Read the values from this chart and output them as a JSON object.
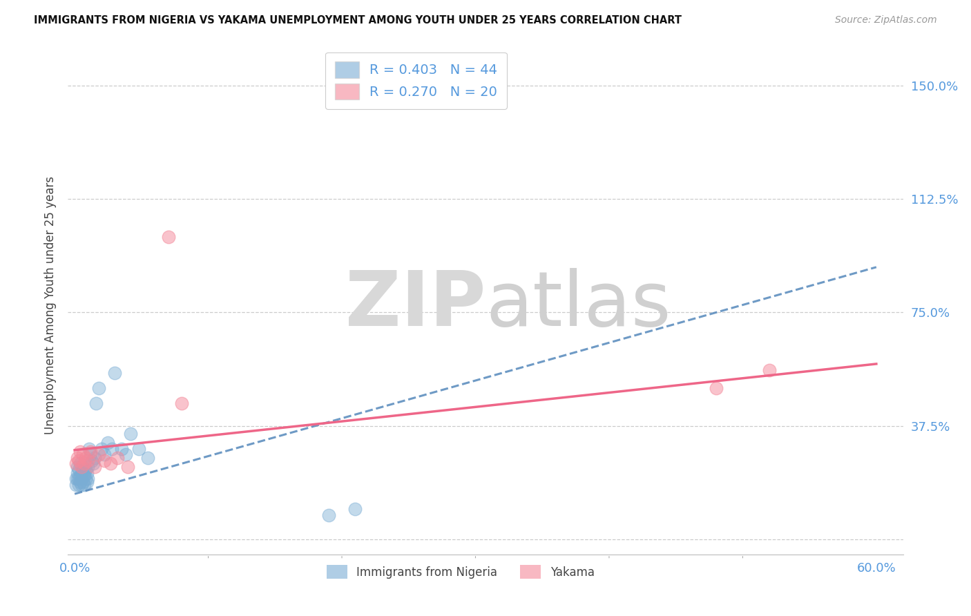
{
  "title": "IMMIGRANTS FROM NIGERIA VS YAKAMA UNEMPLOYMENT AMONG YOUTH UNDER 25 YEARS CORRELATION CHART",
  "source": "Source: ZipAtlas.com",
  "ylabel": "Unemployment Among Youth under 25 years",
  "xlim": [
    -0.005,
    0.62
  ],
  "ylim": [
    -0.05,
    1.6
  ],
  "xticks": [
    0.0,
    0.1,
    0.2,
    0.3,
    0.4,
    0.5,
    0.6
  ],
  "xticklabels": [
    "0.0%",
    "",
    "",
    "",
    "",
    "",
    "60.0%"
  ],
  "yticks_right": [
    0.0,
    0.375,
    0.75,
    1.125,
    1.5
  ],
  "ytick_labels_right": [
    "",
    "37.5%",
    "75.0%",
    "112.5%",
    "150.0%"
  ],
  "legend_label1": "Immigrants from Nigeria",
  "legend_label2": "Yakama",
  "R1": "0.403",
  "N1": "44",
  "R2": "0.270",
  "N2": "20",
  "color1": "#7aadd4",
  "color2": "#f4899a",
  "trendline_color1": "#5588bb",
  "trendline_color2": "#ee6688",
  "watermark_zip": "ZIP",
  "watermark_atlas": "atlas",
  "nigeria_x": [
    0.001,
    0.001,
    0.002,
    0.002,
    0.002,
    0.003,
    0.003,
    0.003,
    0.004,
    0.004,
    0.004,
    0.005,
    0.005,
    0.005,
    0.006,
    0.006,
    0.007,
    0.007,
    0.007,
    0.008,
    0.008,
    0.009,
    0.009,
    0.01,
    0.01,
    0.011,
    0.012,
    0.013,
    0.014,
    0.015,
    0.016,
    0.018,
    0.02,
    0.022,
    0.025,
    0.028,
    0.03,
    0.035,
    0.038,
    0.042,
    0.048,
    0.055,
    0.19,
    0.21
  ],
  "nigeria_y": [
    0.18,
    0.2,
    0.2,
    0.22,
    0.24,
    0.18,
    0.2,
    0.23,
    0.19,
    0.21,
    0.25,
    0.18,
    0.22,
    0.2,
    0.19,
    0.23,
    0.18,
    0.21,
    0.22,
    0.2,
    0.23,
    0.19,
    0.22,
    0.2,
    0.24,
    0.3,
    0.28,
    0.26,
    0.25,
    0.27,
    0.45,
    0.5,
    0.3,
    0.28,
    0.32,
    0.3,
    0.55,
    0.3,
    0.28,
    0.35,
    0.3,
    0.27,
    0.08,
    0.1
  ],
  "yakama_x": [
    0.001,
    0.002,
    0.003,
    0.004,
    0.005,
    0.006,
    0.007,
    0.008,
    0.01,
    0.012,
    0.015,
    0.018,
    0.022,
    0.027,
    0.032,
    0.04,
    0.07,
    0.08,
    0.48,
    0.52
  ],
  "yakama_y": [
    0.25,
    0.27,
    0.26,
    0.29,
    0.24,
    0.28,
    0.25,
    0.27,
    0.26,
    0.29,
    0.24,
    0.28,
    0.26,
    0.25,
    0.27,
    0.24,
    1.0,
    0.45,
    0.5,
    0.56
  ],
  "trend1_x0": 0.0,
  "trend1_y0": 0.15,
  "trend1_x1": 0.6,
  "trend1_y1": 0.9,
  "trend2_x0": 0.0,
  "trend2_y0": 0.295,
  "trend2_x1": 0.6,
  "trend2_y1": 0.58
}
